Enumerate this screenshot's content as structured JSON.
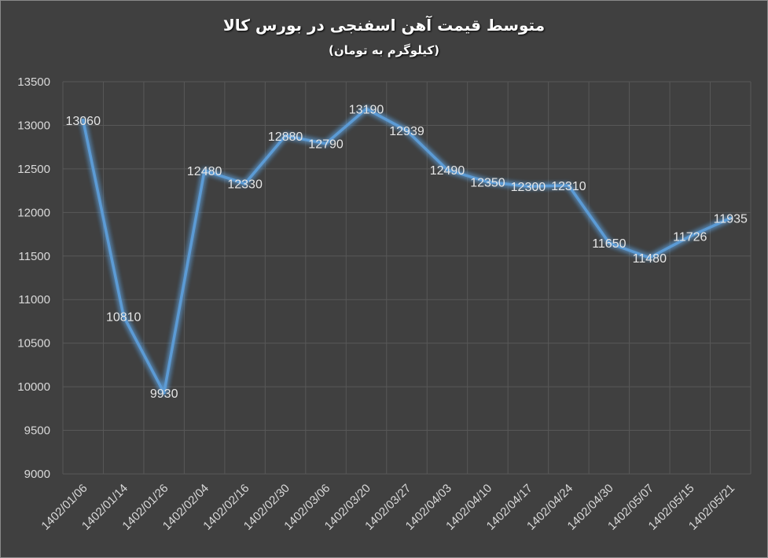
{
  "chart_data": {
    "type": "line",
    "title": "متوسط قیمت آهن اسفنجی در بورس کالا",
    "subtitle": "(کیلوگرم به تومان)",
    "categories": [
      "1402/01/06",
      "1402/01/14",
      "1402/01/26",
      "1402/02/04",
      "1402/02/16",
      "1402/02/30",
      "1402/03/06",
      "1402/03/20",
      "1402/03/27",
      "1402/04/03",
      "1402/04/10",
      "1402/04/17",
      "1402/04/24",
      "1402/04/30",
      "1402/05/07",
      "1402/05/15",
      "1402/05/21"
    ],
    "series": [
      {
        "values": [
          13060,
          10810,
          9930,
          12480,
          12330,
          12880,
          12790,
          13190,
          12939,
          12490,
          12350,
          12300,
          12310,
          11650,
          11480,
          11726,
          11935
        ]
      }
    ],
    "ylim": [
      9000,
      13500
    ],
    "yticks": [
      9000,
      9500,
      10000,
      10500,
      11000,
      11500,
      12000,
      12500,
      13000,
      13500
    ],
    "grid": true,
    "legend": "none",
    "line_color": "#5b9bd5"
  }
}
